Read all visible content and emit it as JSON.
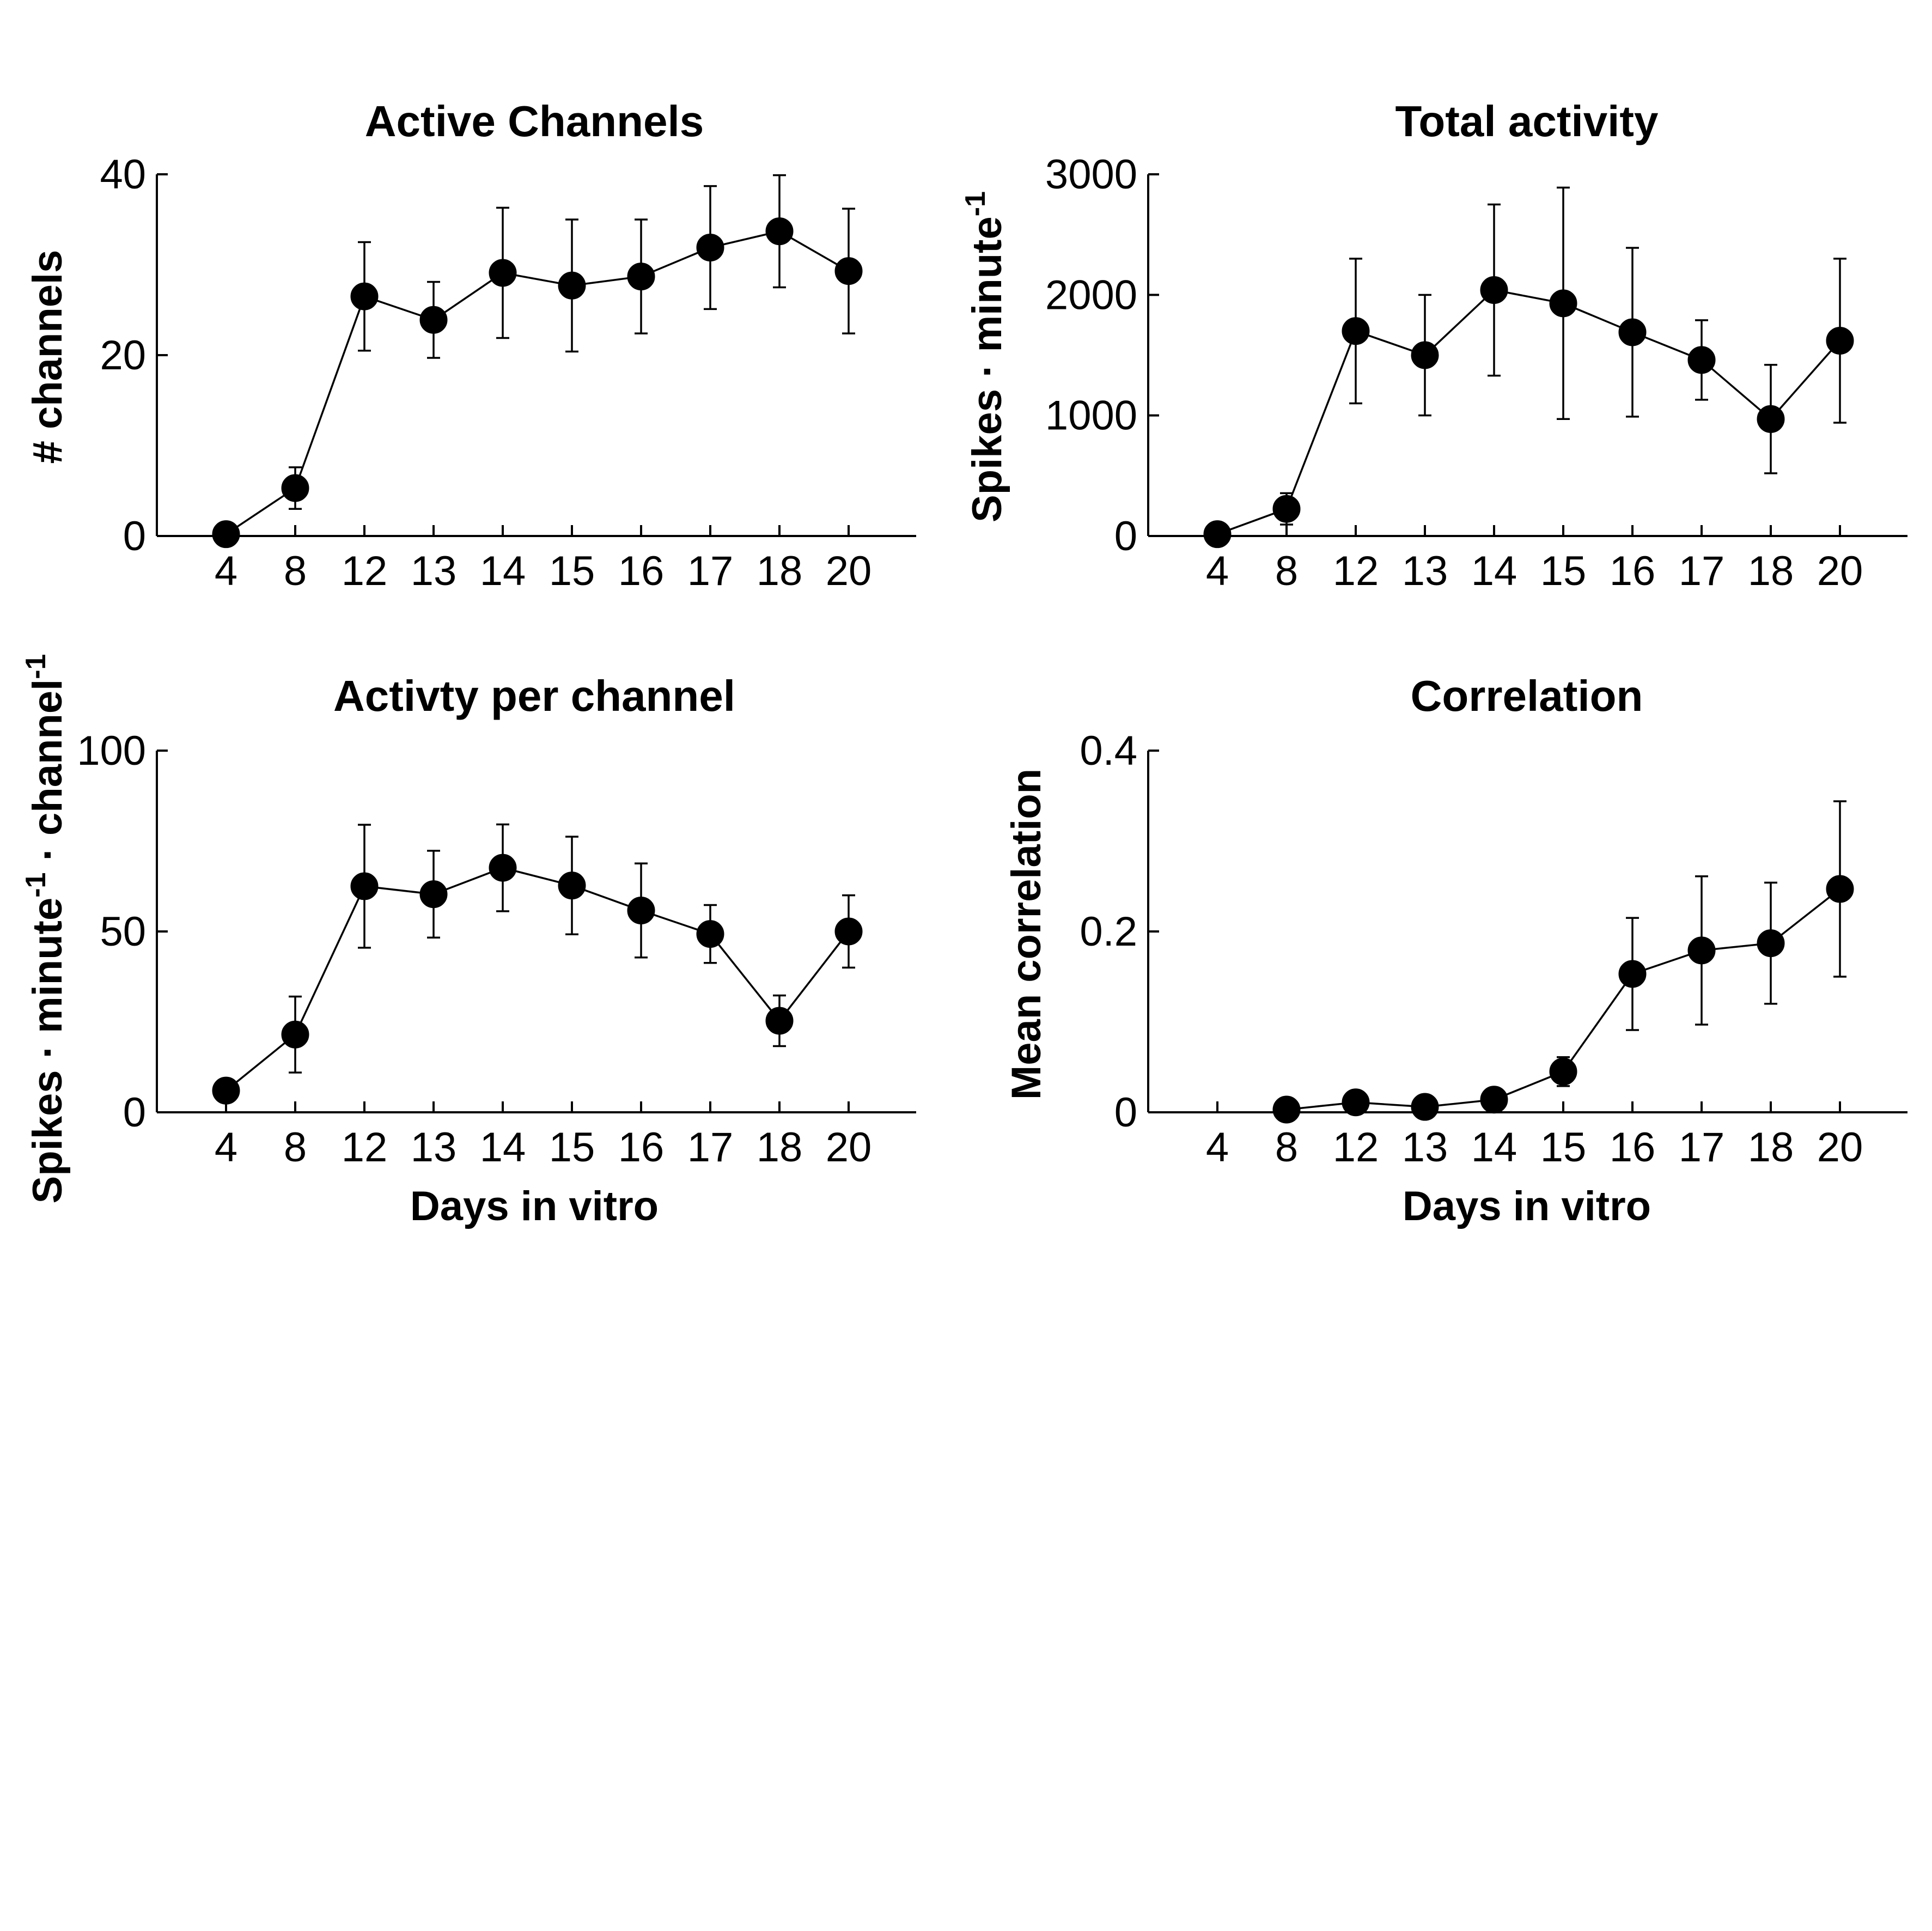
{
  "figure": {
    "background": "#ffffff",
    "ink_color": "#000000"
  },
  "chart_data": [
    {
      "id": "active-channels",
      "type": "line",
      "title": "Active Channels",
      "xlabel": "",
      "ylabel": "# channels",
      "ylabel_superscript": "",
      "ylabel_tail": "",
      "ylabel_tail_superscript": "",
      "categories": [
        "4",
        "8",
        "12",
        "13",
        "14",
        "15",
        "16",
        "17",
        "18",
        "20"
      ],
      "ylim": [
        0,
        40
      ],
      "yticks": [
        "0",
        "20",
        "40"
      ],
      "grid": false,
      "legend": "none",
      "marker": "filled-circle",
      "series": [
        {
          "values": [
            0.2,
            5.3,
            26.5,
            23.9,
            29.1,
            27.7,
            28.7,
            31.9,
            33.7,
            29.3
          ],
          "error": [
            0.2,
            2.3,
            6.0,
            4.2,
            7.2,
            7.3,
            6.3,
            6.8,
            6.2,
            6.9
          ]
        }
      ]
    },
    {
      "id": "total-activity",
      "type": "line",
      "title": "Total activity",
      "xlabel": "",
      "ylabel": "Spikes · minute",
      "ylabel_superscript": "-1",
      "ylabel_tail": "",
      "ylabel_tail_superscript": "",
      "categories": [
        "4",
        "8",
        "12",
        "13",
        "14",
        "15",
        "16",
        "17",
        "18",
        "20"
      ],
      "ylim": [
        0,
        3000
      ],
      "yticks": [
        "0",
        "1000",
        "2000",
        "3000"
      ],
      "grid": false,
      "legend": "none",
      "marker": "filled-circle",
      "series": [
        {
          "values": [
            15,
            225,
            1700,
            1500,
            2040,
            1930,
            1690,
            1460,
            970,
            1620
          ],
          "error": [
            10,
            130,
            600,
            500,
            710,
            960,
            700,
            330,
            450,
            680
          ]
        }
      ]
    },
    {
      "id": "activity-per-channel",
      "type": "line",
      "title": "Activty per channel",
      "xlabel": "Days in vitro",
      "ylabel": "Spikes · minute",
      "ylabel_superscript": "-1",
      "ylabel_tail": " · channel",
      "ylabel_tail_superscript": "-1",
      "categories": [
        "4",
        "8",
        "12",
        "13",
        "14",
        "15",
        "16",
        "17",
        "18",
        "20"
      ],
      "ylim": [
        0,
        100
      ],
      "yticks": [
        "0",
        "50",
        "100"
      ],
      "grid": false,
      "legend": "none",
      "marker": "filled-circle",
      "series": [
        {
          "values": [
            6,
            21.5,
            62.5,
            60.3,
            67.6,
            62.7,
            55.8,
            49.3,
            25.3,
            50.0
          ],
          "error": [
            1,
            10.5,
            17,
            12,
            12,
            13.5,
            13,
            8,
            7,
            10
          ]
        }
      ]
    },
    {
      "id": "correlation",
      "type": "line",
      "title": "Correlation",
      "xlabel": "Days in vitro",
      "ylabel": "Mean correlation",
      "ylabel_superscript": "",
      "ylabel_tail": "",
      "ylabel_tail_superscript": "",
      "categories": [
        "4",
        "8",
        "12",
        "13",
        "14",
        "15",
        "16",
        "17",
        "18",
        "20"
      ],
      "ylim": [
        0,
        0.4
      ],
      "yticks": [
        "0",
        "0.2",
        "0.4"
      ],
      "grid": false,
      "legend": "none",
      "marker": "filled-circle",
      "series": [
        {
          "values": [
            null,
            0.003,
            0.011,
            0.006,
            0.014,
            0.045,
            0.153,
            0.179,
            0.187,
            0.247
          ],
          "error": [
            null,
            0.002,
            0.004,
            0.003,
            0.005,
            0.016,
            0.062,
            0.082,
            0.067,
            0.097
          ]
        }
      ]
    }
  ]
}
